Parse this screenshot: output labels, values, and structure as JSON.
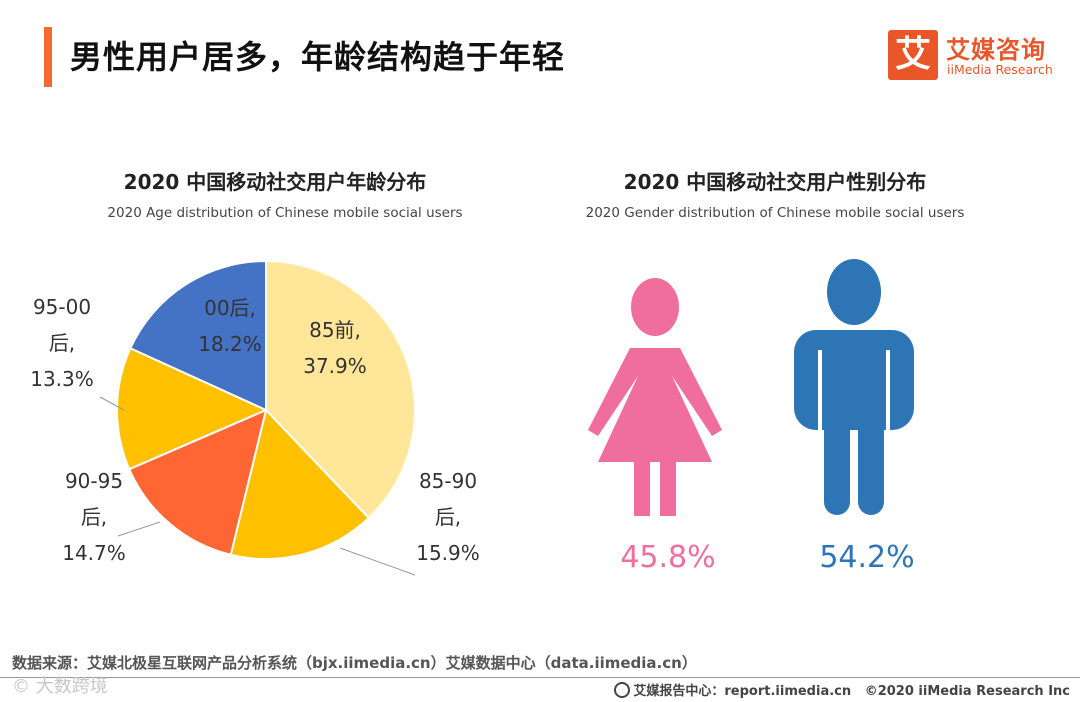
{
  "header": {
    "title": "男性用户居多，年龄结构趋于年轻"
  },
  "logo": {
    "mark": "艾",
    "cn": "艾媒咨询",
    "en": "iiMedia Research"
  },
  "charts": {
    "age": {
      "title": "2020 中国移动社交用户年龄分布",
      "subtitle": "2020 Age distribution of Chinese mobile social users"
    },
    "gender": {
      "title": "2020 中国移动社交用户性别分布",
      "subtitle": "2020 Gender distribution of Chinese mobile social users"
    }
  },
  "labels": {
    "s85q": [
      "85前,",
      "37.9%"
    ],
    "s8590": [
      "85-90",
      "后,",
      "15.9%"
    ],
    "s9095": [
      "90-95",
      "后,",
      "14.7%"
    ],
    "s9500": [
      "95-00",
      "后,",
      "13.3%"
    ],
    "s00": [
      "00后,",
      "18.2%"
    ]
  },
  "chart_data": [
    {
      "type": "pie",
      "categories": [
        "85前",
        "85-90后",
        "90-95后",
        "95-00后",
        "00后"
      ],
      "values": [
        37.9,
        15.9,
        14.7,
        13.3,
        18.2
      ],
      "colors": [
        "#ffe699",
        "#ffc000",
        "#ff6633",
        "#ffc000",
        "#4472c4"
      ],
      "unit": "%"
    },
    {
      "type": "bar",
      "categories": [
        "female",
        "male"
      ],
      "values": [
        45.8,
        54.2
      ],
      "value_labels": [
        "45.8%",
        "54.2%"
      ],
      "colors": [
        "#f06e9c",
        "#2e75b6"
      ],
      "icons": [
        "female-person-icon",
        "male-person-icon"
      ],
      "unit": "%"
    }
  ],
  "footer": {
    "source": "数据来源：艾媒北极星互联网产品分析系统（bjx.iimedia.cn）艾媒数据中心（data.iimedia.cn）",
    "watermark": "© 大数跨境",
    "report_label": "艾媒报告中心：report.iimedia.cn",
    "copyright": "©2020  iiMedia Research  Inc"
  }
}
